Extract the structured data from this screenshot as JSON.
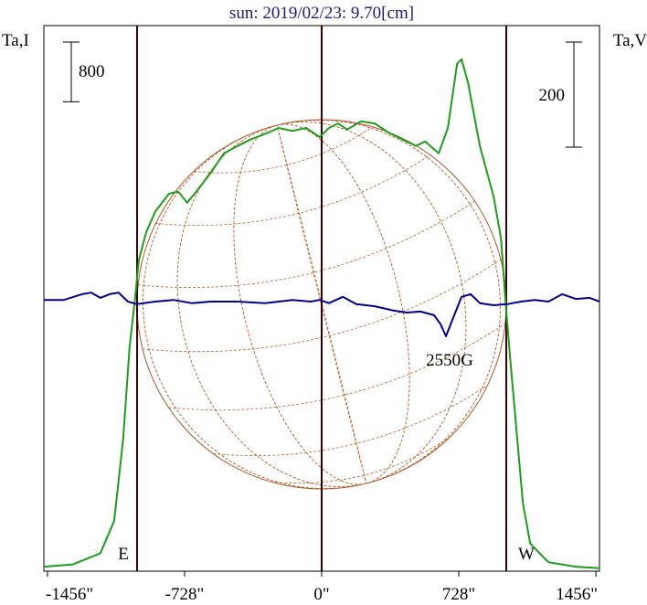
{
  "chart_data": {
    "type": "line",
    "title": "sun: 2019/02/23: 9.70[cm]",
    "ylabel": "Ta,I",
    "y2label": "Ta,V",
    "xlim": [
      -1475,
      1475
    ],
    "xticks": [
      {
        "value": -1456,
        "label": "-1456\""
      },
      {
        "value": -728,
        "label": "-728\""
      },
      {
        "value": 0,
        "label": "0\""
      },
      {
        "value": 728,
        "label": "728\""
      },
      {
        "value": 1456,
        "label": "1456\""
      }
    ],
    "ylim": [
      0,
      7300
    ],
    "y2lim": [
      -513,
      525
    ],
    "vlines": [
      -980,
      0,
      980
    ],
    "scale_bars": [
      {
        "value": 800,
        "axis": "y"
      },
      {
        "value": 200,
        "axis": "y2"
      }
    ],
    "annotations": [
      "E",
      "W",
      "2550G"
    ],
    "series": [
      {
        "name": "I",
        "color": "#1c9e1c",
        "x": [
          -1476,
          -1321,
          -1175,
          -1102,
          -1054,
          -1020,
          -990,
          -971,
          -932,
          -884,
          -811,
          -762,
          -714,
          -665,
          -592,
          -519,
          -447,
          -374,
          -301,
          -228,
          -155,
          -83,
          -10,
          39,
          87,
          136,
          209,
          282,
          354,
          427,
          500,
          549,
          621,
          670,
          719,
          743,
          777,
          840,
          913,
          952,
          976,
          1000,
          1034,
          1068,
          1107,
          1204,
          1350,
          1476
        ],
        "values": [
          60,
          90,
          240,
          670,
          1770,
          3000,
          3670,
          4160,
          4530,
          4810,
          5050,
          5080,
          4930,
          5080,
          5320,
          5590,
          5690,
          5780,
          5850,
          5930,
          5890,
          5930,
          5810,
          5930,
          5990,
          5910,
          6020,
          5990,
          5870,
          5780,
          5690,
          5750,
          5590,
          5930,
          6790,
          6850,
          6540,
          5690,
          5010,
          4460,
          3610,
          2870,
          1900,
          920,
          370,
          120,
          60,
          40
        ]
      },
      {
        "name": "V",
        "color": "#00008c",
        "axis": "y2",
        "x": [
          -1476,
          -1369,
          -1272,
          -1223,
          -1175,
          -1126,
          -1078,
          -1029,
          -981,
          -884,
          -787,
          -689,
          -592,
          -447,
          -301,
          -155,
          -58,
          -10,
          39,
          112,
          184,
          282,
          379,
          452,
          524,
          597,
          631,
          660,
          694,
          743,
          791,
          840,
          913,
          986,
          1058,
          1131,
          1204,
          1277,
          1350,
          1422,
          1476
        ],
        "values": [
          3,
          3,
          14,
          17,
          7,
          14,
          17,
          0,
          -5,
          0,
          3,
          -3,
          0,
          0,
          -3,
          3,
          0,
          3,
          -3,
          9,
          -5,
          -9,
          -17,
          -21,
          -19,
          -26,
          -43,
          -66,
          -35,
          9,
          14,
          -3,
          -7,
          -5,
          0,
          3,
          0,
          14,
          5,
          7,
          0
        ]
      }
    ]
  }
}
